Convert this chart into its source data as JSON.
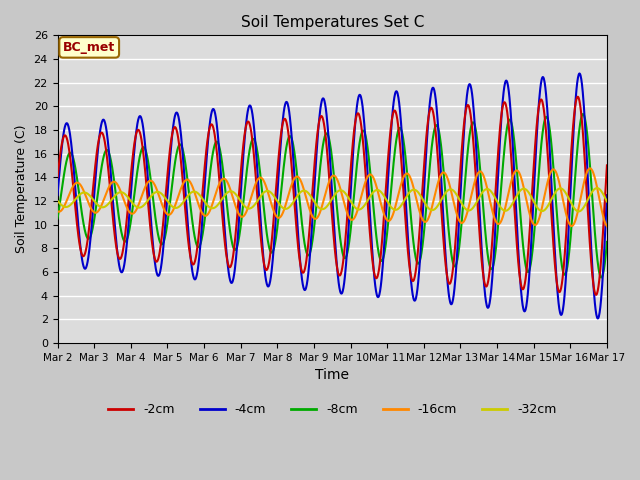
{
  "title": "Soil Temperatures Set C",
  "xlabel": "Time",
  "ylabel": "Soil Temperature (C)",
  "ylim": [
    0,
    26
  ],
  "xlim": [
    0,
    15
  ],
  "annotation_text": "BC_met",
  "annotation_bg": "#FFFFCC",
  "annotation_border": "#996600",
  "annotation_text_color": "#990000",
  "fig_bg": "#C8C8C8",
  "plot_bg": "#DCDCDC",
  "grid_color": "#FFFFFF",
  "series_colors": [
    "#CC0000",
    "#0000CC",
    "#00AA00",
    "#FF8800",
    "#CCCC00"
  ],
  "series_labels": [
    "-2cm",
    "-4cm",
    "-8cm",
    "-16cm",
    "-32cm"
  ],
  "x_ticks": [
    0,
    1,
    2,
    3,
    4,
    5,
    6,
    7,
    8,
    9,
    10,
    11,
    12,
    13,
    14,
    15
  ],
  "x_tick_labels": [
    "Mar 2",
    "Mar 3",
    "Mar 4",
    "Mar 5",
    "Mar 6",
    "Mar 7",
    "Mar 8",
    "Mar 9",
    "Mar 10",
    "Mar 11",
    "Mar 12",
    "Mar 13",
    "Mar 14",
    "Mar 15",
    "Mar 16",
    "Mar 17"
  ],
  "linewidth": 1.5,
  "mean": 12.0
}
